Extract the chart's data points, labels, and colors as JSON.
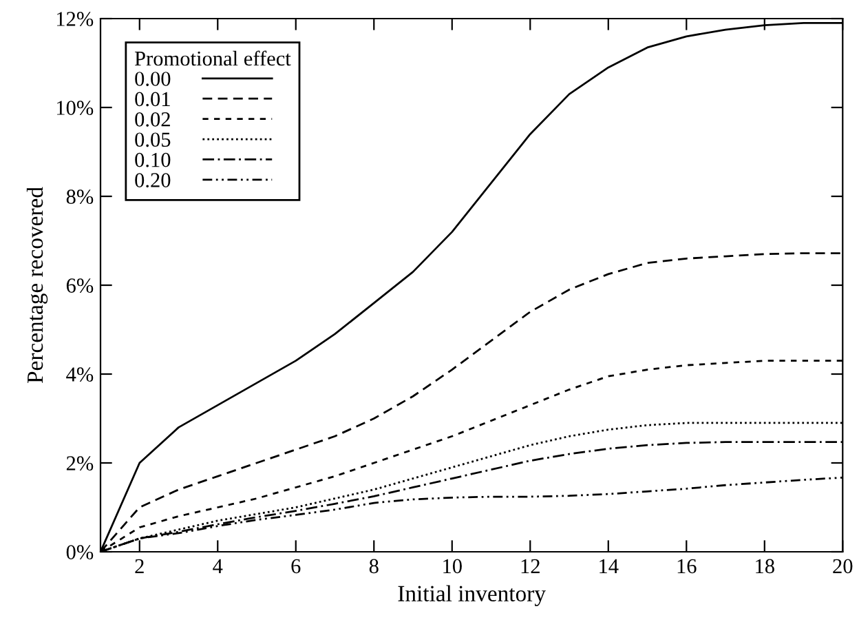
{
  "chart_data": {
    "type": "line",
    "xlabel": "Initial inventory",
    "ylabel": "Percentage recovered",
    "legend_title": "Promotional effect",
    "legend": "top left",
    "grid": false,
    "marker": "none",
    "x": [
      1,
      2,
      3,
      4,
      5,
      6,
      7,
      8,
      9,
      10,
      11,
      12,
      13,
      14,
      15,
      16,
      17,
      18,
      19,
      20
    ],
    "xlim": [
      1,
      20
    ],
    "xticks": [
      2,
      4,
      6,
      8,
      10,
      12,
      14,
      16,
      18,
      20
    ],
    "ylim": [
      0,
      12
    ],
    "yticks": [
      {
        "value": 0,
        "label": "0%"
      },
      {
        "value": 2,
        "label": "2%"
      },
      {
        "value": 4,
        "label": "4%"
      },
      {
        "value": 6,
        "label": "6%"
      },
      {
        "value": 8,
        "label": "8%"
      },
      {
        "value": 10,
        "label": "10%"
      },
      {
        "value": 12,
        "label": "12%"
      }
    ],
    "series": [
      {
        "name": "0.00",
        "color": "#000000",
        "line_style": "solid",
        "values": [
          0,
          2.0,
          2.8,
          3.3,
          3.8,
          4.3,
          4.9,
          5.6,
          6.3,
          7.2,
          8.3,
          9.4,
          10.3,
          10.9,
          11.35,
          11.6,
          11.75,
          11.85,
          11.9,
          11.9
        ]
      },
      {
        "name": "0.01",
        "color": "#000000",
        "line_style": "dashed",
        "values": [
          0,
          1.0,
          1.4,
          1.7,
          2.0,
          2.3,
          2.6,
          3.0,
          3.5,
          4.1,
          4.75,
          5.4,
          5.9,
          6.25,
          6.5,
          6.6,
          6.65,
          6.7,
          6.72,
          6.72
        ]
      },
      {
        "name": "0.02",
        "color": "#000000",
        "line_style": "short-dashed",
        "values": [
          0,
          0.55,
          0.8,
          1.0,
          1.2,
          1.45,
          1.7,
          2.0,
          2.3,
          2.6,
          2.95,
          3.3,
          3.65,
          3.95,
          4.1,
          4.2,
          4.25,
          4.3,
          4.3,
          4.3
        ]
      },
      {
        "name": "0.05",
        "color": "#000000",
        "line_style": "dotted",
        "values": [
          0,
          0.3,
          0.5,
          0.7,
          0.85,
          1.0,
          1.2,
          1.4,
          1.65,
          1.9,
          2.15,
          2.4,
          2.6,
          2.75,
          2.85,
          2.9,
          2.9,
          2.9,
          2.9,
          2.9
        ]
      },
      {
        "name": "0.10",
        "color": "#000000",
        "line_style": "dash-dot",
        "values": [
          0,
          0.3,
          0.45,
          0.62,
          0.78,
          0.92,
          1.08,
          1.25,
          1.45,
          1.65,
          1.85,
          2.05,
          2.2,
          2.32,
          2.4,
          2.45,
          2.47,
          2.47,
          2.47,
          2.47
        ]
      },
      {
        "name": "0.20",
        "color": "#000000",
        "line_style": "dash-dot-dot",
        "values": [
          0,
          0.3,
          0.42,
          0.58,
          0.72,
          0.83,
          0.95,
          1.1,
          1.18,
          1.22,
          1.24,
          1.24,
          1.26,
          1.3,
          1.36,
          1.42,
          1.5,
          1.56,
          1.62,
          1.67
        ]
      }
    ]
  }
}
